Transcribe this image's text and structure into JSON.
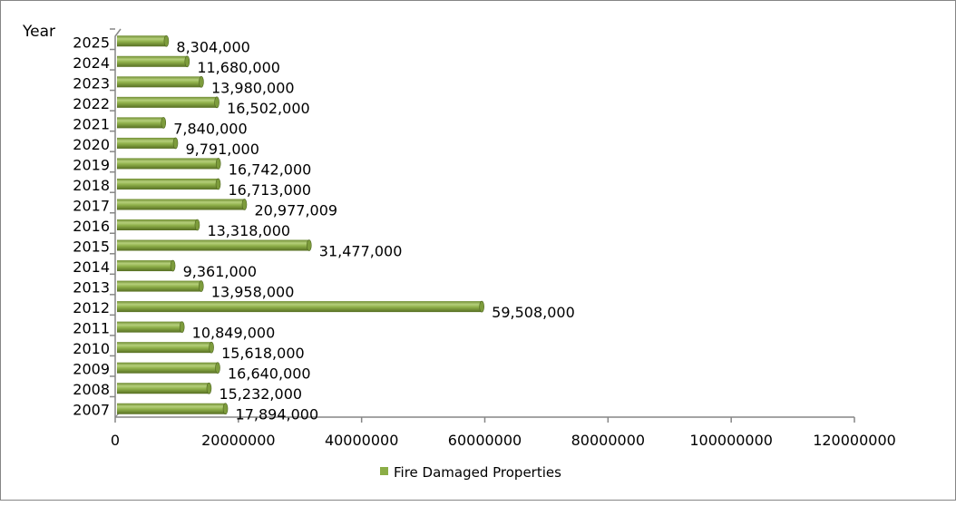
{
  "chart_data": {
    "type": "bar",
    "orientation": "horizontal",
    "title": "",
    "ylabel": "Year",
    "xlabel": "",
    "categories": [
      "2007",
      "2008",
      "2009",
      "2010",
      "2011",
      "2012",
      "2013",
      "2014",
      "2015",
      "2016",
      "2017",
      "2018",
      "2019",
      "2020",
      "2021",
      "2022",
      "2023",
      "2024",
      "2025"
    ],
    "series": [
      {
        "name": "Fire Damaged Properties",
        "color": "#8bad46",
        "values": [
          17894000,
          15232000,
          16640000,
          15618000,
          10849000,
          59508000,
          13958000,
          9361000,
          31477000,
          13318000,
          20977009,
          16713000,
          16742000,
          9791000,
          7840000,
          16502000,
          13980000,
          11680000,
          8304000
        ],
        "labels": [
          "17,894,000",
          "15,232,000",
          "16,640,000",
          "15,618,000",
          "10,849,000",
          "59,508,000",
          "13,958,000",
          "9,361,000",
          "31,477,000",
          "13,318,000",
          "20,977,009",
          "16,713,000",
          "16,742,000",
          "9,791,000",
          "7,840,000",
          "16,502,000",
          "13,980,000",
          "11,680,000",
          "8,304,000"
        ]
      }
    ],
    "xlim": [
      0,
      120000000
    ],
    "xticks": [
      0,
      20000000,
      40000000,
      60000000,
      80000000,
      100000000,
      120000000
    ],
    "xtick_labels": [
      "0",
      "20000000",
      "40000000",
      "60000000",
      "80000000",
      "100000000",
      "120000000"
    ],
    "grid": false,
    "legend": "bottom"
  }
}
